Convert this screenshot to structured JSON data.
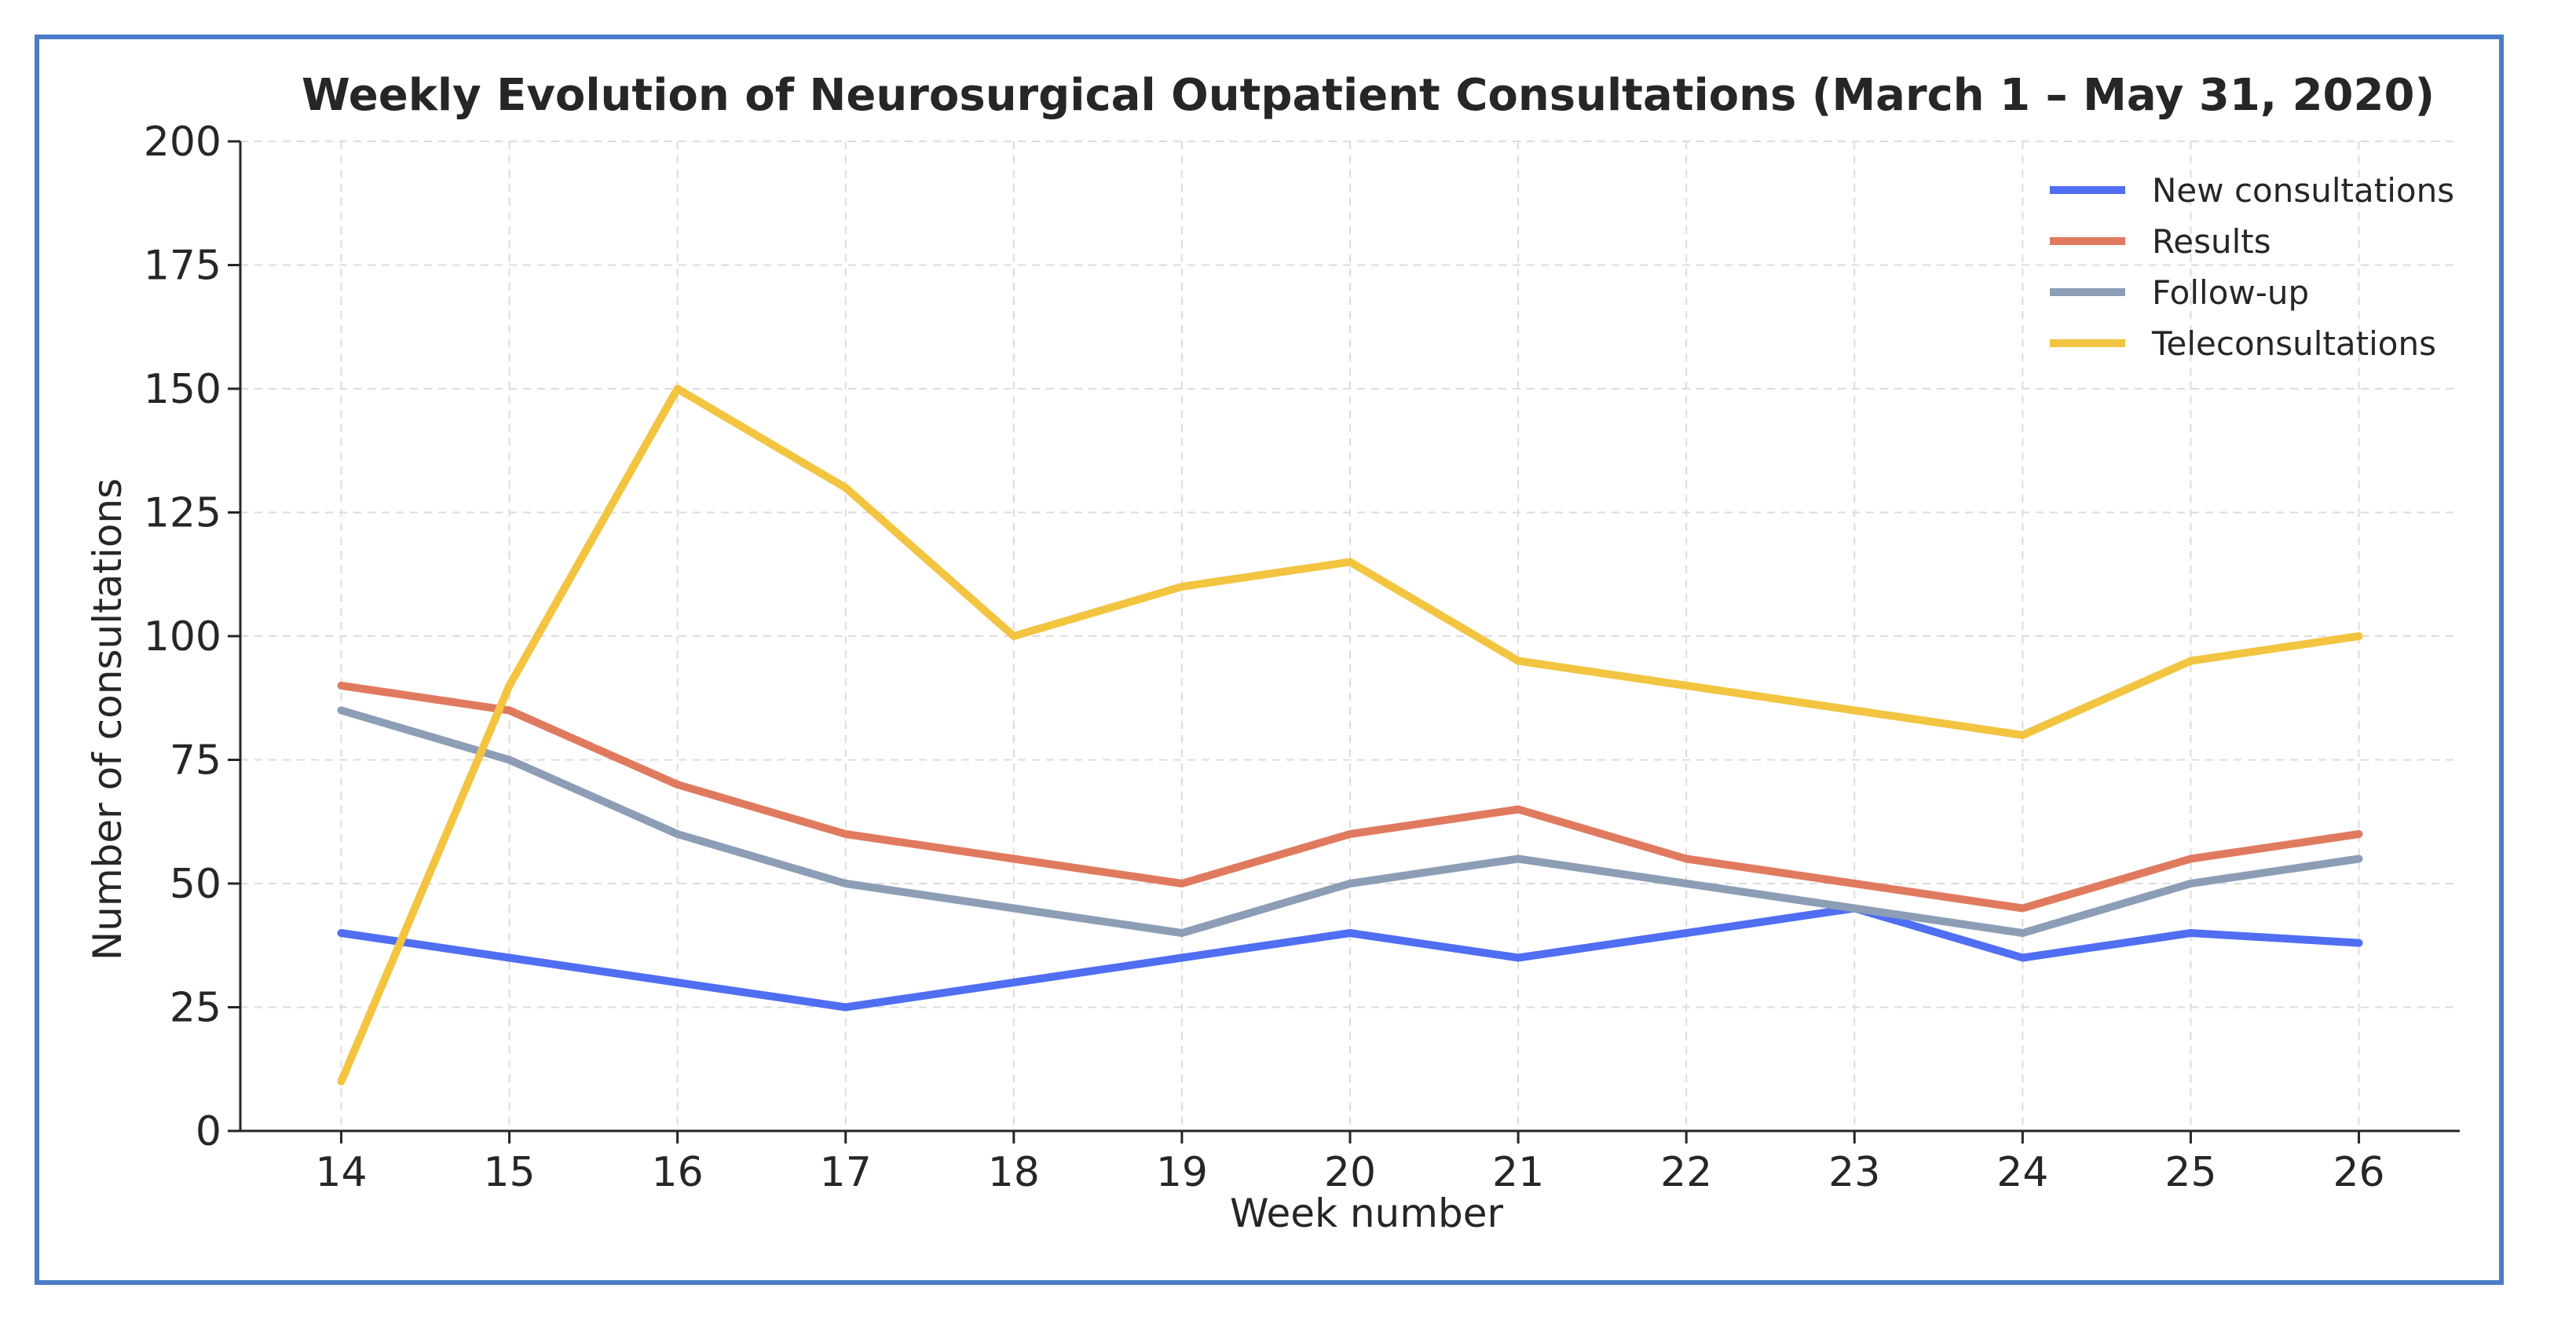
{
  "chart_data": {
    "type": "line",
    "title": "Weekly Evolution of Neurosurgical Outpatient Consultations (March 1 – May 31, 2020)",
    "xlabel": "Week number",
    "ylabel": "Number of consultations",
    "x": [
      14,
      15,
      16,
      17,
      18,
      19,
      20,
      21,
      22,
      23,
      24,
      25,
      26
    ],
    "x_tick_labels": [
      "14",
      "15",
      "16",
      "17",
      "18",
      "19",
      "20",
      "21",
      "22",
      "23",
      "24",
      "25",
      "26"
    ],
    "ylim": [
      0,
      200
    ],
    "y_ticks": [
      0,
      25,
      50,
      75,
      100,
      125,
      150,
      175,
      200
    ],
    "y_tick_labels": [
      "0",
      "25",
      "50",
      "75",
      "100",
      "125",
      "150",
      "175",
      "200"
    ],
    "grid": true,
    "legend_position": "top-right",
    "series": [
      {
        "name": "New consultations",
        "color": "#4f6ef2",
        "values": [
          40,
          35,
          30,
          25,
          30,
          35,
          40,
          35,
          40,
          45,
          35,
          40,
          38
        ]
      },
      {
        "name": "Results",
        "color": "#e07a5f",
        "values": [
          90,
          85,
          70,
          60,
          55,
          50,
          60,
          65,
          55,
          50,
          45,
          55,
          60
        ]
      },
      {
        "name": "Follow-up",
        "color": "#8c9db5",
        "values": [
          85,
          75,
          60,
          50,
          45,
          40,
          50,
          55,
          50,
          45,
          40,
          50,
          55
        ]
      },
      {
        "name": "Teleconsultations",
        "color": "#f2c440",
        "values": [
          10,
          90,
          150,
          130,
          100,
          110,
          115,
          95,
          90,
          85,
          80,
          95,
          100
        ]
      }
    ]
  }
}
